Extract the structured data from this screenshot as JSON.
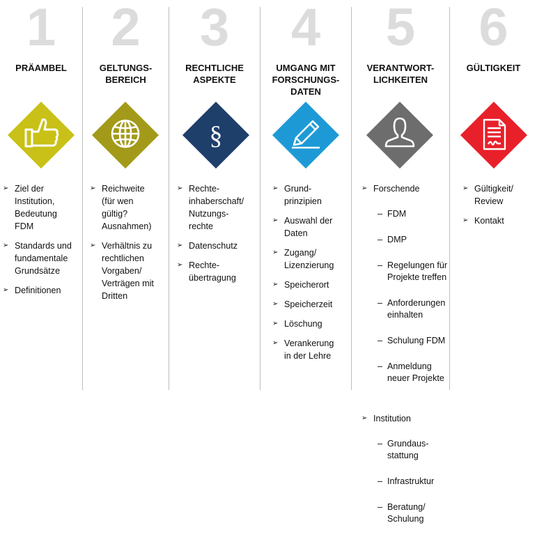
{
  "columns": [
    {
      "number": "1",
      "title": "PRÄAMBEL",
      "icon_name": "thumbs-up-icon",
      "icon_color": "#c9c117",
      "items": [
        {
          "text": "Ziel der\nInstitution,\nBedeutung\nFDM"
        },
        {
          "text": "Standards und\nfundamentale\nGrundsätze"
        },
        {
          "text": "Definitionen"
        }
      ]
    },
    {
      "number": "2",
      "title": "GELTUNGS-\nBEREICH",
      "icon_name": "globe-icon",
      "icon_color": "#a39a1a",
      "items": [
        {
          "text": "Reichweite\n(für wen\ngültig?\nAusnahmen)"
        },
        {
          "text": "Verhältnis zu\nrechtlichen\nVorgaben/\nVerträgen mit\nDritten"
        }
      ]
    },
    {
      "number": "3",
      "title": "RECHTLICHE\nASPEKTE",
      "icon_name": "paragraph-icon",
      "icon_color": "#1f3f6b",
      "items": [
        {
          "text": "Rechte-\ninhaberschaft/\nNutzungs-\nrechte"
        },
        {
          "text": "Datenschutz"
        },
        {
          "text": "Rechte-\nübertragung"
        }
      ]
    },
    {
      "number": "4",
      "title": "UMGANG MIT\nFORSCHUNGS-\nDATEN",
      "icon_name": "pencil-icon",
      "icon_color": "#1d9ad6",
      "items": [
        {
          "text": "Grund-\nprinzipien"
        },
        {
          "text": "Auswahl der\nDaten"
        },
        {
          "text": "Zugang/\nLizenzierung"
        },
        {
          "text": "Speicherort"
        },
        {
          "text": "Speicherzeit"
        },
        {
          "text": "Löschung"
        },
        {
          "text": "Verankerung\nin der Lehre"
        }
      ]
    },
    {
      "number": "5",
      "title": "VERANTWORT-\nLICHKEITEN",
      "icon_name": "person-icon",
      "icon_color": "#6d6d6d",
      "items": [
        {
          "text": "Forschende",
          "sub": [
            "FDM",
            "DMP",
            "Regelungen für\nProjekte treffen",
            "Anforderungen\neinhalten",
            "Schulung FDM",
            "Anmeldung\nneuer Projekte"
          ]
        },
        {
          "text": "Institution",
          "sub": [
            "Grundaus-\nstattung",
            "Infrastruktur",
            "Beratung/\nSchulung"
          ]
        }
      ]
    },
    {
      "number": "6",
      "title": "GÜLTIGKEIT",
      "icon_name": "signed-document-icon",
      "icon_color": "#e8202a",
      "items": [
        {
          "text": "Gültigkeit/\nReview"
        },
        {
          "text": "Kontakt"
        }
      ]
    }
  ]
}
